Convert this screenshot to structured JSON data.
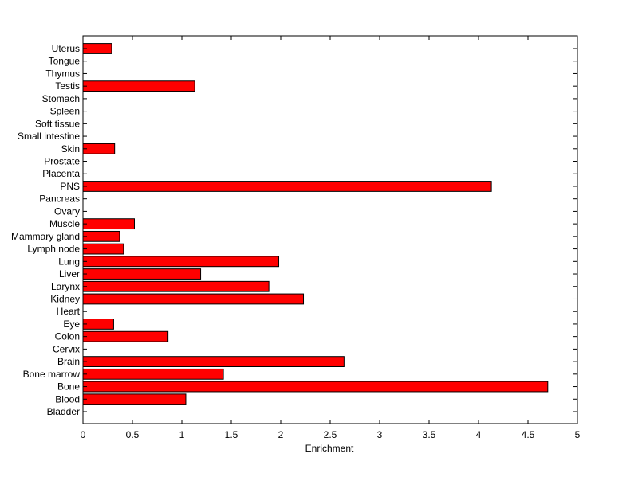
{
  "chart_data": {
    "type": "bar",
    "orientation": "horizontal",
    "title": "",
    "xlabel": "Enrichment",
    "ylabel": "",
    "xlim": [
      0,
      5
    ],
    "x_ticks": [
      "0",
      "0.5",
      "1",
      "1.5",
      "2",
      "2.5",
      "3",
      "3.5",
      "4",
      "4.5",
      "5"
    ],
    "grid": false,
    "legend": "none",
    "bar_color": "#ff0000",
    "bar_edge_color": "#000000",
    "categories": [
      "Bladder",
      "Blood",
      "Bone",
      "Bone marrow",
      "Brain",
      "Cervix",
      "Colon",
      "Eye",
      "Heart",
      "Kidney",
      "Larynx",
      "Liver",
      "Lung",
      "Lymph node",
      "Mammary gland",
      "Muscle",
      "Ovary",
      "Pancreas",
      "PNS",
      "Placenta",
      "Prostate",
      "Skin",
      "Small intestine",
      "Soft tissue",
      "Spleen",
      "Stomach",
      "Testis",
      "Thymus",
      "Tongue",
      "Uterus"
    ],
    "values": [
      0,
      1.04,
      4.7,
      1.42,
      2.64,
      0,
      0.86,
      0.31,
      0,
      2.23,
      1.88,
      1.19,
      1.98,
      0.41,
      0.37,
      0.52,
      0,
      0,
      4.13,
      0,
      0,
      0.32,
      0,
      0,
      0,
      0,
      1.13,
      0,
      0,
      0.29
    ]
  }
}
